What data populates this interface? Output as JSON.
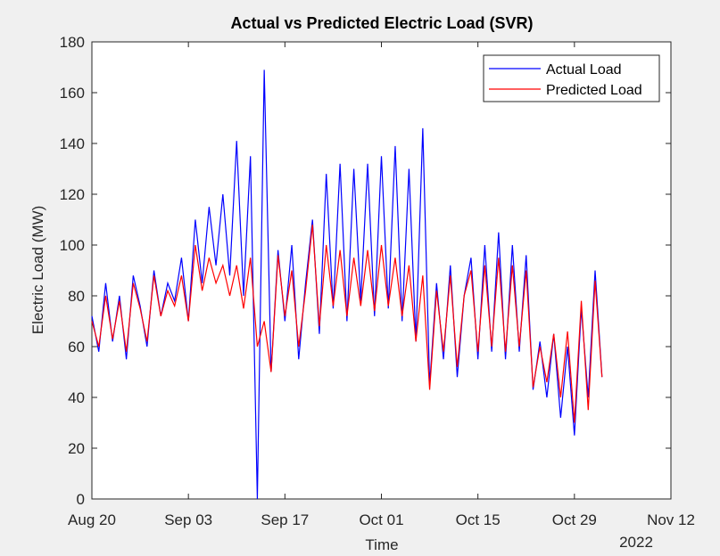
{
  "chart_data": {
    "type": "line",
    "title": "Actual vs Predicted Electric Load (SVR)",
    "x_label": "Time",
    "y_label": "Electric Load (MW)",
    "x_secondary_label": "2022",
    "x": [
      "2022-08-20",
      "2022-08-21",
      "2022-08-22",
      "2022-08-23",
      "2022-08-24",
      "2022-08-25",
      "2022-08-26",
      "2022-08-27",
      "2022-08-28",
      "2022-08-29",
      "2022-08-30",
      "2022-08-31",
      "2022-09-01",
      "2022-09-02",
      "2022-09-03",
      "2022-09-04",
      "2022-09-05",
      "2022-09-06",
      "2022-09-07",
      "2022-09-08",
      "2022-09-09",
      "2022-09-10",
      "2022-09-11",
      "2022-09-12",
      "2022-09-13",
      "2022-09-14",
      "2022-09-15",
      "2022-09-16",
      "2022-09-17",
      "2022-09-18",
      "2022-09-19",
      "2022-09-20",
      "2022-09-21",
      "2022-09-22",
      "2022-09-23",
      "2022-09-24",
      "2022-09-25",
      "2022-09-26",
      "2022-09-27",
      "2022-09-28",
      "2022-09-29",
      "2022-09-30",
      "2022-10-01",
      "2022-10-02",
      "2022-10-03",
      "2022-10-04",
      "2022-10-05",
      "2022-10-06",
      "2022-10-07",
      "2022-10-08",
      "2022-10-09",
      "2022-10-10",
      "2022-10-11",
      "2022-10-12",
      "2022-10-13",
      "2022-10-14",
      "2022-10-15",
      "2022-10-16",
      "2022-10-17",
      "2022-10-18",
      "2022-10-19",
      "2022-10-20",
      "2022-10-21",
      "2022-10-22",
      "2022-10-23",
      "2022-10-24",
      "2022-10-25",
      "2022-10-26",
      "2022-10-27",
      "2022-10-28",
      "2022-10-29",
      "2022-10-30",
      "2022-10-31",
      "2022-11-01",
      "2022-11-02"
    ],
    "series": [
      {
        "name": "Actual Load",
        "color": "#0000ff",
        "values": [
          72,
          58,
          85,
          62,
          80,
          55,
          88,
          76,
          60,
          90,
          72,
          85,
          78,
          95,
          70,
          110,
          85,
          115,
          92,
          120,
          88,
          141,
          80,
          135,
          0,
          169,
          50,
          98,
          70,
          100,
          55,
          85,
          110,
          65,
          128,
          75,
          132,
          70,
          130,
          78,
          132,
          72,
          135,
          75,
          139,
          70,
          130,
          62,
          146,
          45,
          85,
          55,
          92,
          48,
          80,
          95,
          55,
          100,
          58,
          105,
          55,
          100,
          58,
          96,
          43,
          62,
          40,
          65,
          32,
          60,
          25,
          75,
          40,
          90,
          48
        ]
      },
      {
        "name": "Predicted Load",
        "color": "#ff0000",
        "values": [
          70,
          60,
          80,
          63,
          78,
          58,
          85,
          75,
          62,
          88,
          72,
          82,
          76,
          88,
          70,
          100,
          82,
          95,
          85,
          92,
          80,
          92,
          75,
          95,
          60,
          70,
          50,
          96,
          72,
          90,
          60,
          82,
          108,
          68,
          100,
          76,
          98,
          72,
          95,
          76,
          98,
          74,
          100,
          76,
          95,
          72,
          92,
          62,
          88,
          43,
          82,
          58,
          88,
          52,
          80,
          90,
          58,
          92,
          60,
          95,
          58,
          92,
          60,
          90,
          44,
          60,
          46,
          65,
          40,
          66,
          30,
          78,
          35,
          86,
          48
        ]
      }
    ],
    "xlim": [
      "2022-08-20",
      "2022-11-12"
    ],
    "xticks": [
      {
        "value": "2022-08-20",
        "label": "Aug 20"
      },
      {
        "value": "2022-09-03",
        "label": "Sep 03"
      },
      {
        "value": "2022-09-17",
        "label": "Sep 17"
      },
      {
        "value": "2022-10-01",
        "label": "Oct 01"
      },
      {
        "value": "2022-10-15",
        "label": "Oct 15"
      },
      {
        "value": "2022-10-29",
        "label": "Oct 29"
      },
      {
        "value": "2022-11-12",
        "label": "Nov 12"
      }
    ],
    "ylim": [
      0,
      180
    ],
    "yticks": [
      0,
      20,
      40,
      60,
      80,
      100,
      120,
      140,
      160,
      180
    ],
    "legend": "top-right",
    "grid": false
  }
}
